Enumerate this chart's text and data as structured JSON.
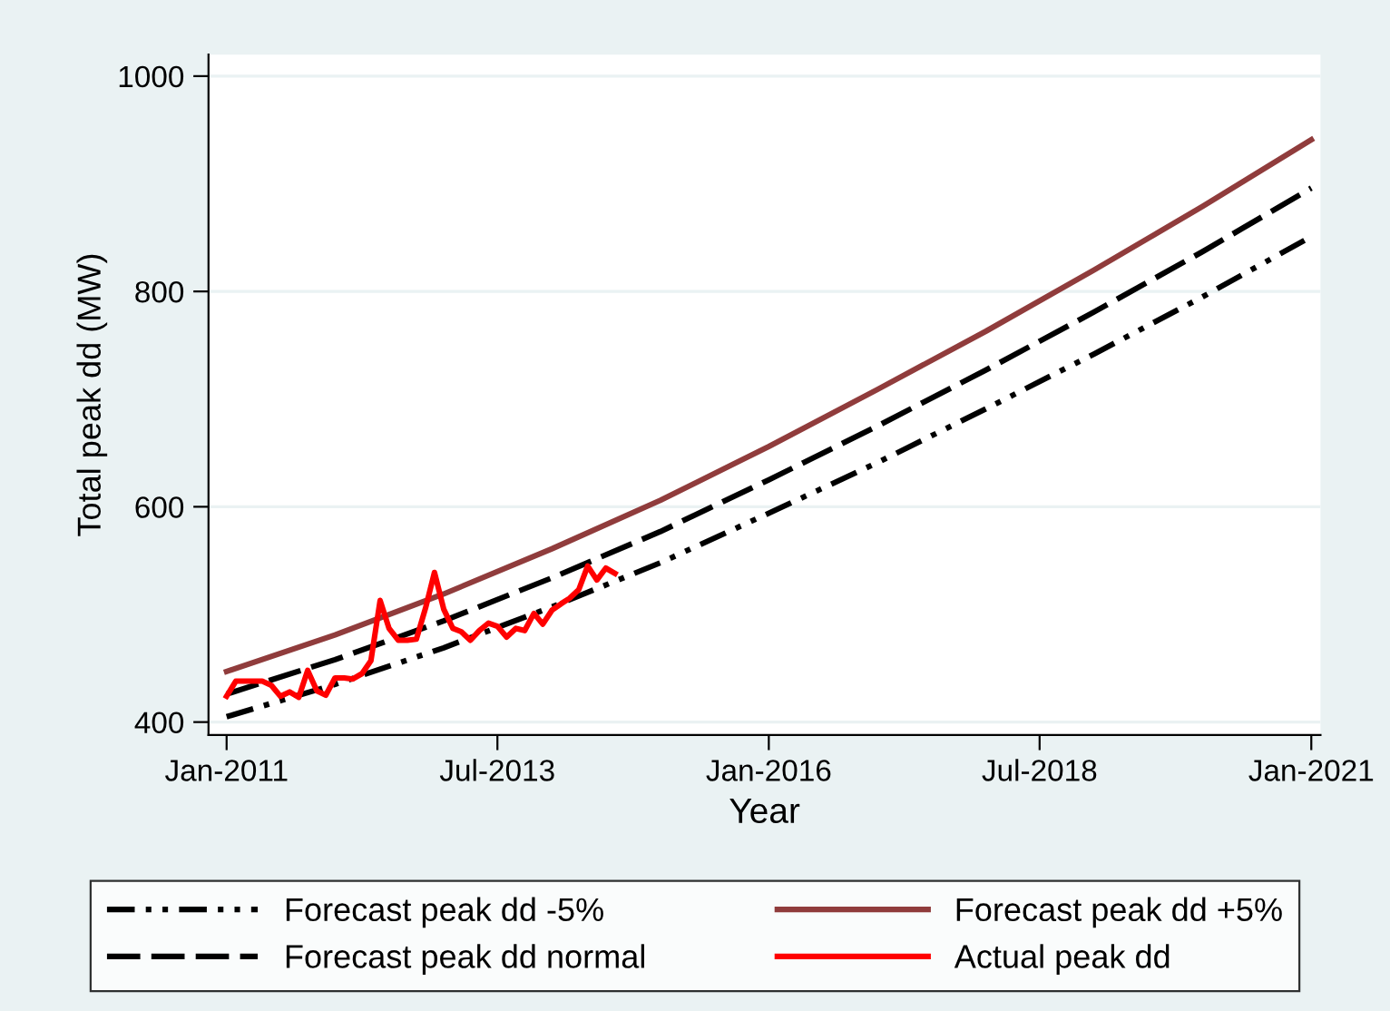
{
  "chart_data": {
    "type": "line",
    "xlabel": "Year",
    "ylabel": "Total peak dd (MW)",
    "xlim": [
      "2010-11",
      "2021-02"
    ],
    "ylim": [
      388,
      1020
    ],
    "xticks": [
      {
        "value": "2011-01",
        "label": "Jan-2011"
      },
      {
        "value": "2013-07",
        "label": "Jul-2013"
      },
      {
        "value": "2016-01",
        "label": "Jan-2016"
      },
      {
        "value": "2018-07",
        "label": "Jul-2018"
      },
      {
        "value": "2021-01",
        "label": "Jan-2021"
      }
    ],
    "yticks": [
      400,
      600,
      800,
      1000
    ],
    "grid": "y",
    "legend": "bottom",
    "marker": "none",
    "series": [
      {
        "name": "Forecast peak dd -5%",
        "color": "#000000",
        "line_style": "dashdot",
        "x": [
          "2011-01",
          "2012-01",
          "2013-01",
          "2014-01",
          "2015-01",
          "2016-01",
          "2017-01",
          "2018-01",
          "2019-01",
          "2020-01",
          "2021-01"
        ],
        "values": [
          405,
          435,
          469,
          507,
          548,
          594,
          641,
          691,
          742,
          795,
          851
        ]
      },
      {
        "name": "Forecast peak dd +5%",
        "color": "#903c3c",
        "line_style": "solid",
        "x": [
          "2011-01",
          "2012-01",
          "2013-01",
          "2014-01",
          "2015-01",
          "2016-01",
          "2017-01",
          "2018-01",
          "2019-01",
          "2020-01",
          "2021-01"
        ],
        "values": [
          447,
          481,
          519,
          561,
          606,
          656,
          709,
          763,
          820,
          879,
          941
        ]
      },
      {
        "name": "Forecast peak dd normal",
        "color": "#000000",
        "line_style": "dashed",
        "x": [
          "2011-01",
          "2012-01",
          "2013-01",
          "2014-01",
          "2015-01",
          "2016-01",
          "2017-01",
          "2018-01",
          "2019-01",
          "2020-01",
          "2021-01"
        ],
        "values": [
          426,
          458,
          494,
          534,
          577,
          625,
          675,
          727,
          781,
          837,
          896
        ]
      },
      {
        "name": "Actual peak dd",
        "color": "#ff0000",
        "line_style": "solid",
        "x": [
          "2011-01",
          "2011-02",
          "2011-03",
          "2011-04",
          "2011-05",
          "2011-06",
          "2011-07",
          "2011-08",
          "2011-09",
          "2011-10",
          "2011-11",
          "2011-12",
          "2012-01",
          "2012-02",
          "2012-03",
          "2012-04",
          "2012-05",
          "2012-06",
          "2012-07",
          "2012-08",
          "2012-09",
          "2012-10",
          "2012-11",
          "2012-12",
          "2013-01",
          "2013-02",
          "2013-03",
          "2013-04",
          "2013-05",
          "2013-06",
          "2013-07",
          "2013-08",
          "2013-09",
          "2013-10",
          "2013-11",
          "2013-12",
          "2014-01",
          "2014-02",
          "2014-03",
          "2014-04",
          "2014-05",
          "2014-06",
          "2014-07",
          "2014-08"
        ],
        "values": [
          424,
          438,
          438,
          438,
          438,
          434,
          424,
          428,
          423,
          448,
          429,
          425,
          441,
          441,
          440,
          445,
          457,
          513,
          487,
          476,
          476,
          477,
          506,
          539,
          505,
          487,
          484,
          476,
          485,
          492,
          489,
          479,
          487,
          485,
          501,
          491,
          504,
          510,
          515,
          523,
          545,
          532,
          543,
          538
        ]
      }
    ]
  }
}
